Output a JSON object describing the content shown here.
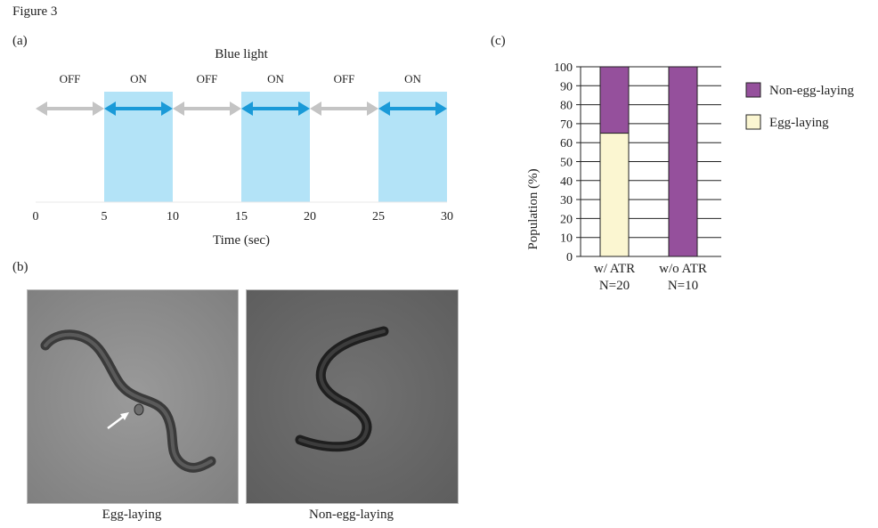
{
  "figure_title": "Figure 3",
  "panel_labels": {
    "a": "(a)",
    "b": "(b)",
    "c": "(c)"
  },
  "panel_b": {
    "left_caption": "Egg-laying",
    "right_caption": "Non-egg-laying"
  },
  "colors": {
    "on_fill": "#b3e3f7",
    "on_arrow": "#1a9ad8",
    "off_arrow": "#c4c4c4",
    "non_egg_laying": "#95509c",
    "egg_laying": "#fbf6d1"
  },
  "chart_data": [
    {
      "type": "timeline",
      "title": "Blue light",
      "xlabel": "Time (sec)",
      "xlim": [
        0,
        30
      ],
      "ticks": [
        "0",
        "5",
        "10",
        "15",
        "20",
        "25",
        "30"
      ],
      "intervals": [
        {
          "label": "OFF",
          "start": 0,
          "end": 5,
          "state": "off"
        },
        {
          "label": "ON",
          "start": 5,
          "end": 10,
          "state": "on"
        },
        {
          "label": "OFF",
          "start": 10,
          "end": 15,
          "state": "off"
        },
        {
          "label": "ON",
          "start": 15,
          "end": 20,
          "state": "on"
        },
        {
          "label": "OFF",
          "start": 20,
          "end": 25,
          "state": "off"
        },
        {
          "label": "ON",
          "start": 25,
          "end": 30,
          "state": "on"
        }
      ]
    },
    {
      "type": "bar",
      "stacked": true,
      "ylabel": "Population (%)",
      "ylim": [
        0,
        100
      ],
      "yticks": [
        "0",
        "10",
        "20",
        "30",
        "40",
        "50",
        "60",
        "70",
        "80",
        "90",
        "100"
      ],
      "grid": true,
      "legend_position": "right",
      "categories": [
        {
          "line1": "w/ ATR",
          "line2": "N=20"
        },
        {
          "line1": "w/o ATR",
          "line2": "N=10"
        }
      ],
      "series": [
        {
          "name": "Egg-laying",
          "values": [
            65,
            0
          ]
        },
        {
          "name": "Non-egg-laying",
          "values": [
            35,
            100
          ]
        }
      ],
      "legend": [
        "Non-egg-laying",
        "Egg-laying"
      ]
    }
  ]
}
